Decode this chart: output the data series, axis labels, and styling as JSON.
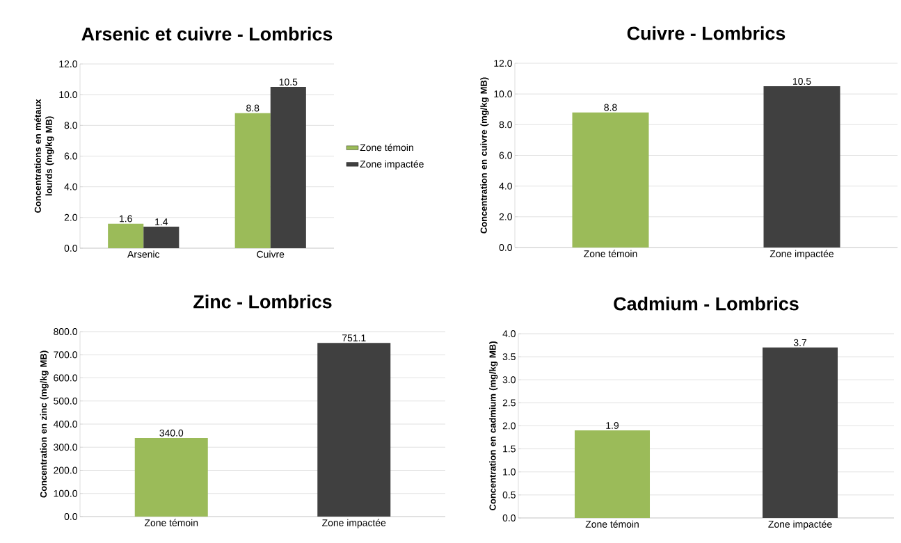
{
  "chart_data": [
    {
      "type": "bar",
      "title": "Arsenic et cuivre - Lombrics",
      "ylabel": "Concentrations en métaux lourds (mg/kg MB)",
      "categories": [
        "Arsenic",
        "Cuivre"
      ],
      "series": [
        {
          "name": "Zone témoin",
          "color": "#9bbb59",
          "values": [
            1.6,
            8.8
          ],
          "value_labels": [
            "1.6",
            "8.8"
          ]
        },
        {
          "name": "Zone impactée",
          "color": "#404040",
          "values": [
            1.4,
            10.5
          ],
          "value_labels": [
            "1.4",
            "10.5"
          ]
        }
      ],
      "ylim": [
        0,
        12
      ],
      "yticks": [
        {
          "value": 0,
          "label": "0.0"
        },
        {
          "value": 2,
          "label": "2.0"
        },
        {
          "value": 4,
          "label": "4.0"
        },
        {
          "value": 6,
          "label": "6.0"
        },
        {
          "value": 8,
          "label": "8.0"
        },
        {
          "value": 10,
          "label": "10.0"
        },
        {
          "value": 12,
          "label": "12.0"
        }
      ],
      "grid": "y",
      "legend": "right"
    },
    {
      "type": "bar",
      "title": "Cuivre - Lombrics",
      "ylabel": "Concentration en cuivre (mg/kg MB)",
      "categories": [
        "Zone témoin",
        "Zone impactée"
      ],
      "values": [
        8.8,
        10.5
      ],
      "value_labels": [
        "8.8",
        "10.5"
      ],
      "colors": [
        "#9bbb59",
        "#404040"
      ],
      "ylim": [
        0,
        12
      ],
      "yticks": [
        {
          "value": 0,
          "label": "0.0"
        },
        {
          "value": 2,
          "label": "2.0"
        },
        {
          "value": 4,
          "label": "4.0"
        },
        {
          "value": 6,
          "label": "6.0"
        },
        {
          "value": 8,
          "label": "8.0"
        },
        {
          "value": 10,
          "label": "10.0"
        },
        {
          "value": 12,
          "label": "12.0"
        }
      ],
      "grid": "y"
    },
    {
      "type": "bar",
      "title": "Zinc - Lombrics",
      "ylabel": "Concentration en zinc (mg/kg MB)",
      "categories": [
        "Zone témoin",
        "Zone impactée"
      ],
      "values": [
        340.0,
        751.1
      ],
      "value_labels": [
        "340.0",
        "751.1"
      ],
      "colors": [
        "#9bbb59",
        "#404040"
      ],
      "ylim": [
        0,
        800
      ],
      "yticks": [
        {
          "value": 0,
          "label": "0.0"
        },
        {
          "value": 100,
          "label": "100.0"
        },
        {
          "value": 200,
          "label": "200.0"
        },
        {
          "value": 300,
          "label": "300.0"
        },
        {
          "value": 400,
          "label": "400.0"
        },
        {
          "value": 500,
          "label": "500.0"
        },
        {
          "value": 600,
          "label": "600.0"
        },
        {
          "value": 700,
          "label": "700.0"
        },
        {
          "value": 800,
          "label": "800.0"
        }
      ],
      "grid": "y"
    },
    {
      "type": "bar",
      "title": "Cadmium - Lombrics",
      "ylabel": "Concentration en cadmium (mg/kg MB)",
      "categories": [
        "Zone témoin",
        "Zone impactée"
      ],
      "values": [
        1.9,
        3.7
      ],
      "value_labels": [
        "1.9",
        "3.7"
      ],
      "colors": [
        "#9bbb59",
        "#404040"
      ],
      "ylim": [
        0,
        4
      ],
      "yticks": [
        {
          "value": 0,
          "label": "0.0"
        },
        {
          "value": 0.5,
          "label": "0.5"
        },
        {
          "value": 1,
          "label": "1.0"
        },
        {
          "value": 1.5,
          "label": "1.5"
        },
        {
          "value": 2,
          "label": "2.0"
        },
        {
          "value": 2.5,
          "label": "2.5"
        },
        {
          "value": 3,
          "label": "3.0"
        },
        {
          "value": 3.5,
          "label": "3.5"
        },
        {
          "value": 4,
          "label": "4.0"
        }
      ],
      "grid": "y"
    }
  ]
}
